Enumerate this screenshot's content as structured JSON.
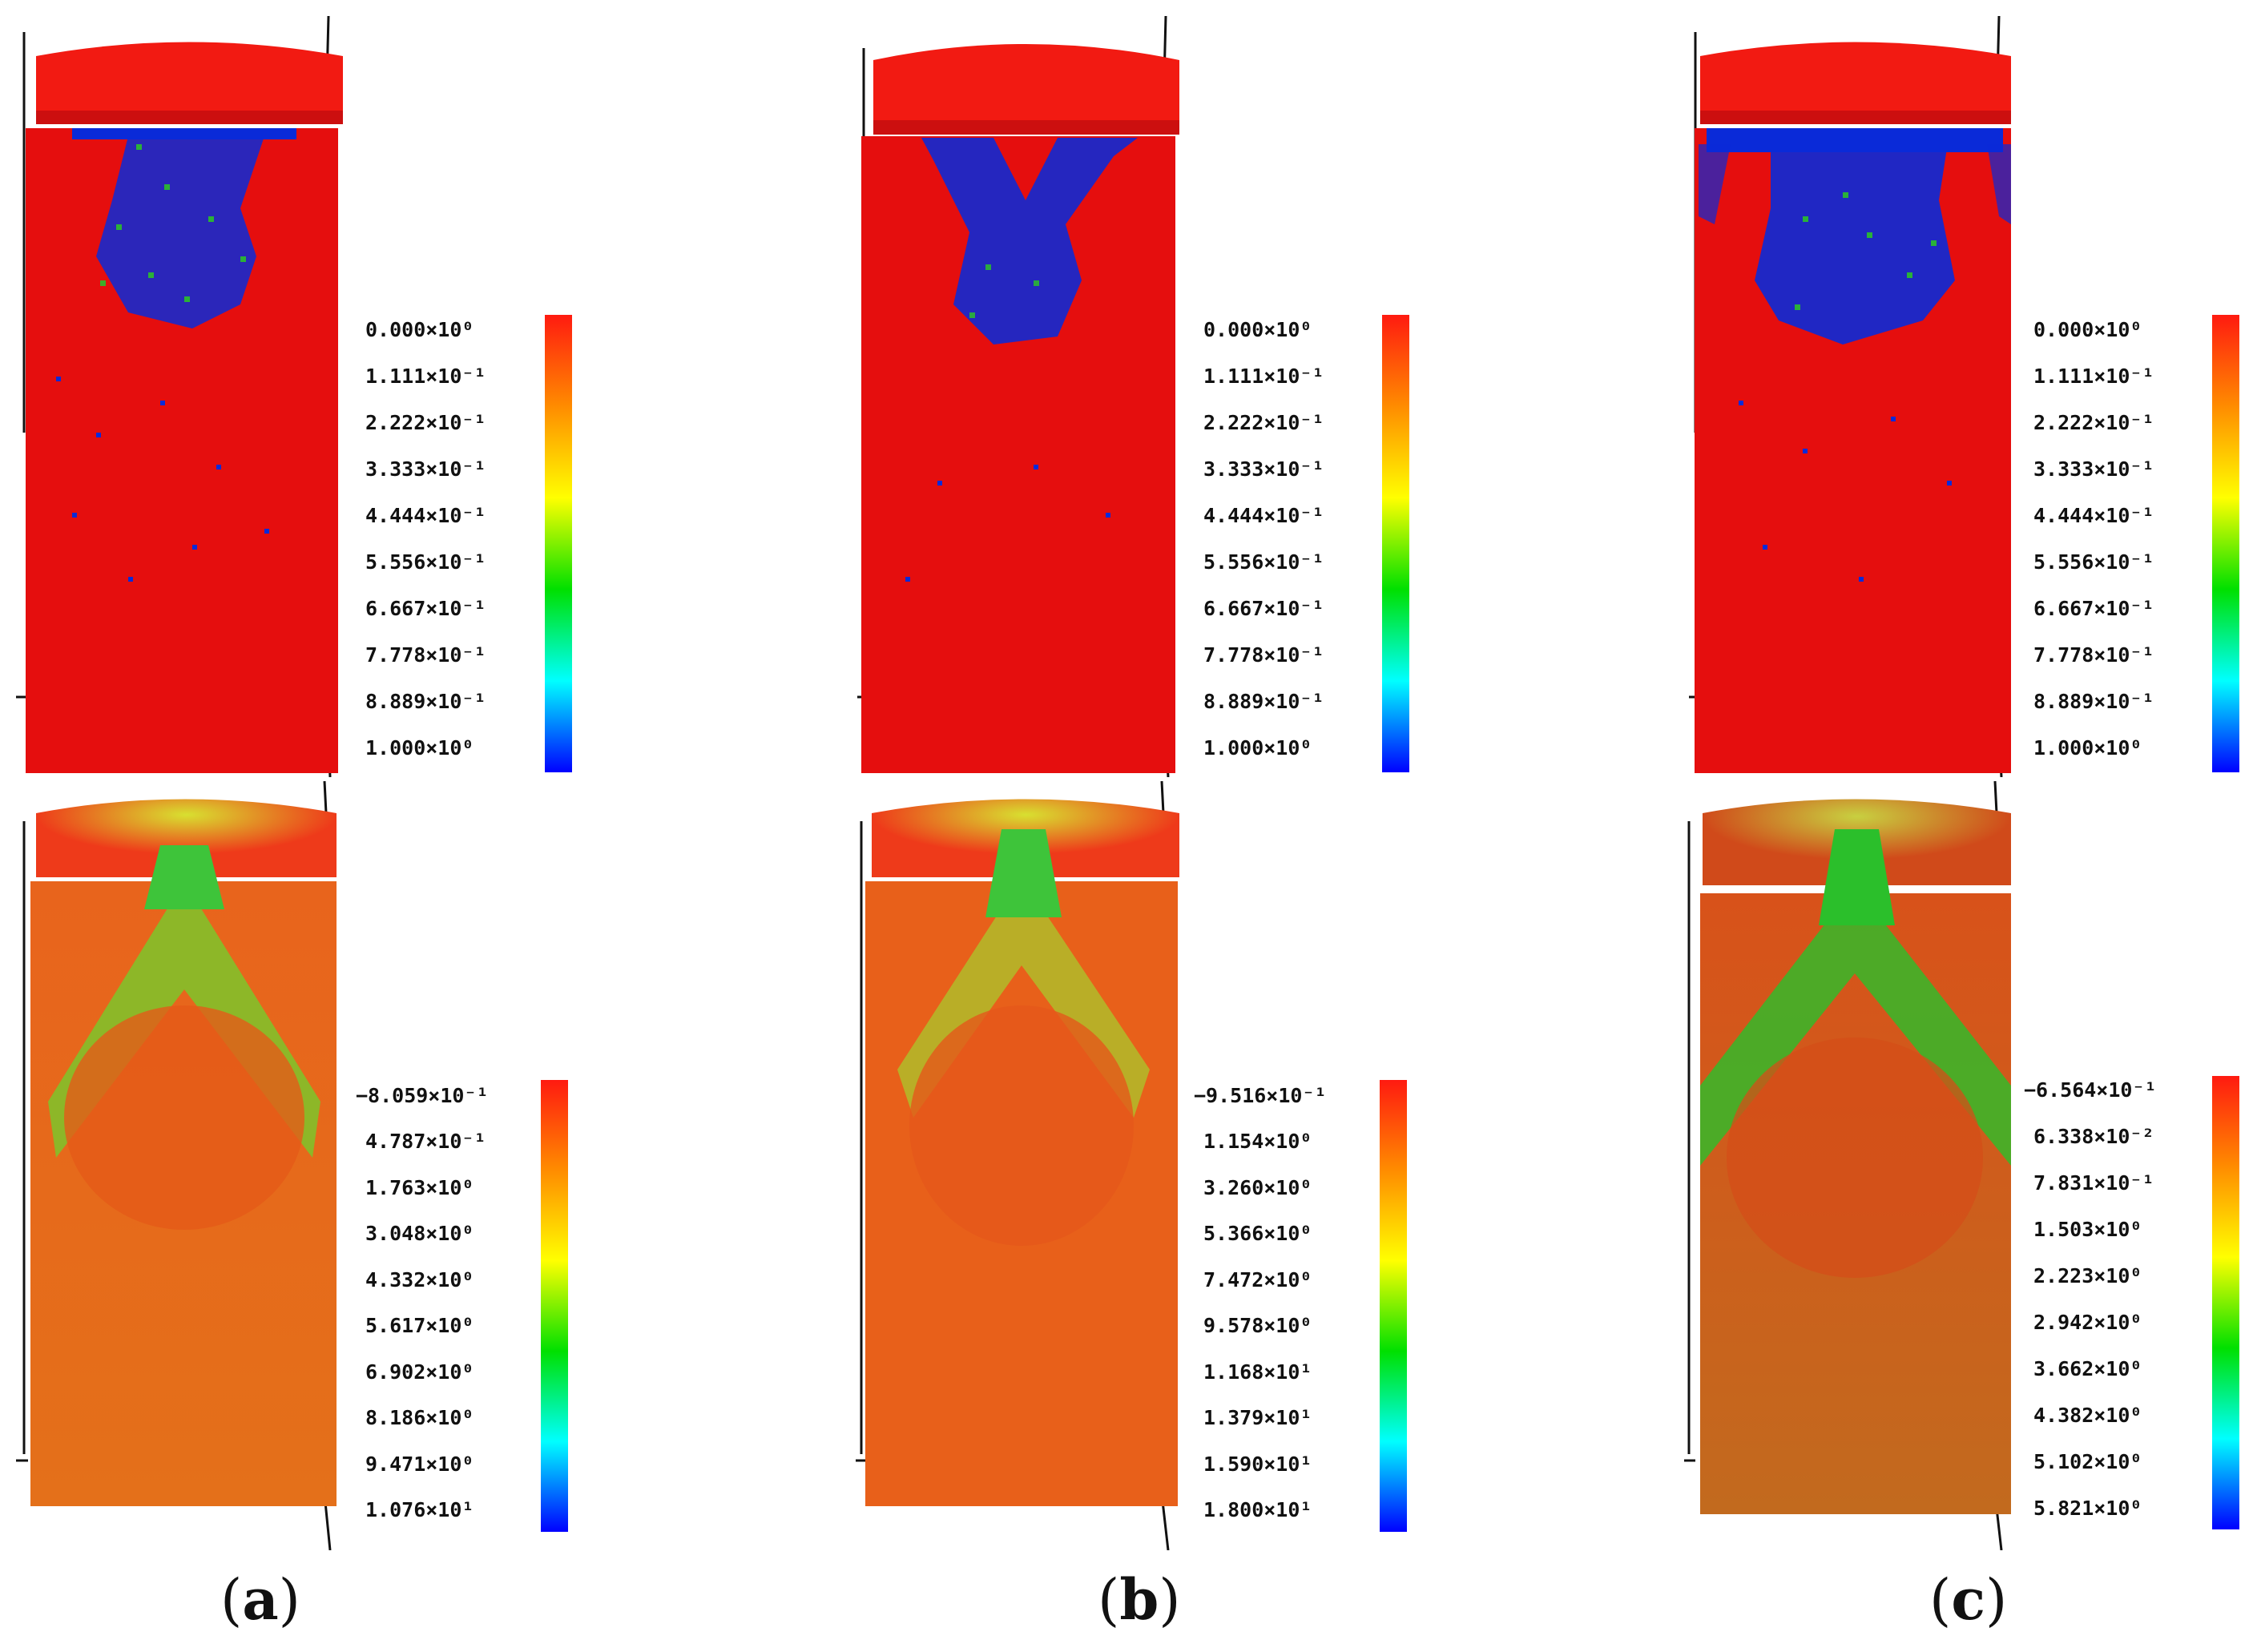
{
  "panels": [
    {
      "id": "a",
      "caption": "a",
      "top_colorbar": [
        "0.000×10⁰",
        "1.111×10⁻¹",
        "2.222×10⁻¹",
        "3.333×10⁻¹",
        "4.444×10⁻¹",
        "5.556×10⁻¹",
        "6.667×10⁻¹",
        "7.778×10⁻¹",
        "8.889×10⁻¹",
        "1.000×10⁰"
      ],
      "bottom_colorbar": [
        "−8.059×10⁻¹",
        "4.787×10⁻¹",
        "1.763×10⁰",
        "3.048×10⁰",
        "4.332×10⁰",
        "5.617×10⁰",
        "6.902×10⁰",
        "8.186×10⁰",
        "9.471×10⁰",
        "1.076×10¹"
      ]
    },
    {
      "id": "b",
      "caption": "b",
      "top_colorbar": [
        "0.000×10⁰",
        "1.111×10⁻¹",
        "2.222×10⁻¹",
        "3.333×10⁻¹",
        "4.444×10⁻¹",
        "5.556×10⁻¹",
        "6.667×10⁻¹",
        "7.778×10⁻¹",
        "8.889×10⁻¹",
        "1.000×10⁰"
      ],
      "bottom_colorbar": [
        "−9.516×10⁻¹",
        "1.154×10⁰",
        "3.260×10⁰",
        "5.366×10⁰",
        "7.472×10⁰",
        "9.578×10⁰",
        "1.168×10¹",
        "1.379×10¹",
        "1.590×10¹",
        "1.800×10¹"
      ]
    },
    {
      "id": "c",
      "caption": "c",
      "top_colorbar": [
        "0.000×10⁰",
        "1.111×10⁻¹",
        "2.222×10⁻¹",
        "3.333×10⁻¹",
        "4.444×10⁻¹",
        "5.556×10⁻¹",
        "6.667×10⁻¹",
        "7.778×10⁻¹",
        "8.889×10⁻¹",
        "1.000×10⁰"
      ],
      "bottom_colorbar": [
        "−6.564×10⁻¹",
        "6.338×10⁻²",
        "7.831×10⁻¹",
        "1.503×10⁰",
        "2.223×10⁰",
        "2.942×10⁰",
        "3.662×10⁰",
        "4.382×10⁰",
        "5.102×10⁰",
        "5.821×10⁰"
      ]
    }
  ],
  "colors": {
    "solid_red": "#e50e0e",
    "cap_red": "#f21a12",
    "damage_blue": "#0a2ad8",
    "orange_field": "#ea5a1c",
    "green_field": "#2bc02b"
  }
}
